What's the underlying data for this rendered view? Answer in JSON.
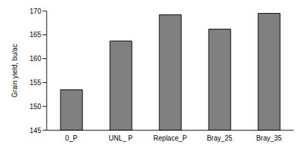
{
  "chart_data": {
    "type": "bar",
    "y_label": "Grain yield, bu/ac",
    "categories": [
      "0_P",
      "UNL_ P",
      "Replace_P",
      "Bray_25",
      "Bray_35"
    ],
    "values": [
      153.5,
      163.7,
      169.2,
      166.2,
      169.5
    ],
    "color": "#808080",
    "ylim": [
      145,
      170
    ],
    "yticks": [
      145,
      150,
      155,
      160,
      165,
      170
    ],
    "grid": false
  }
}
